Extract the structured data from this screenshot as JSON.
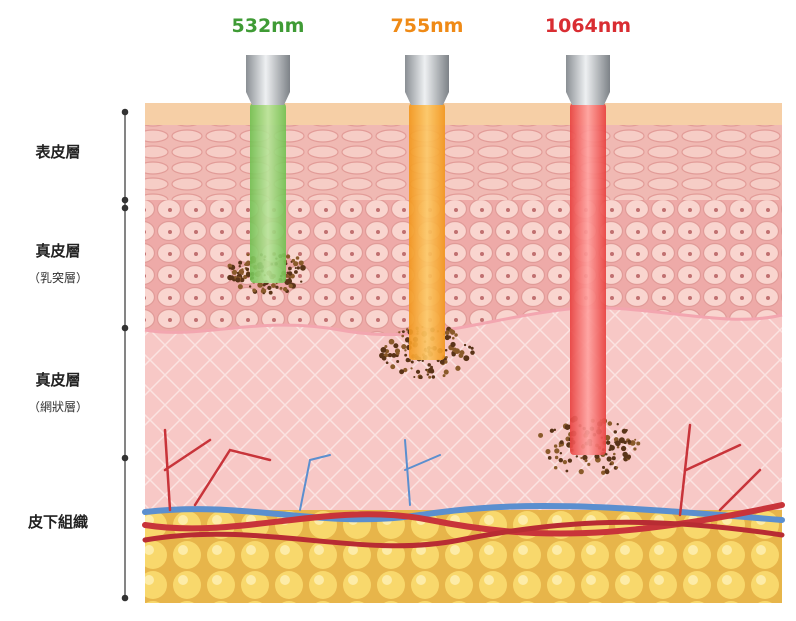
{
  "lasers": [
    {
      "label": "532nm"
    },
    {
      "label": "755nm"
    },
    {
      "label": "1064nm"
    }
  ],
  "layers": [
    {
      "label": "表皮層"
    },
    {
      "label": "真皮層",
      "sublabel": "（乳突層）"
    },
    {
      "label": "真皮層",
      "sublabel": "（網狀層）"
    },
    {
      "label": "皮下組織"
    }
  ]
}
